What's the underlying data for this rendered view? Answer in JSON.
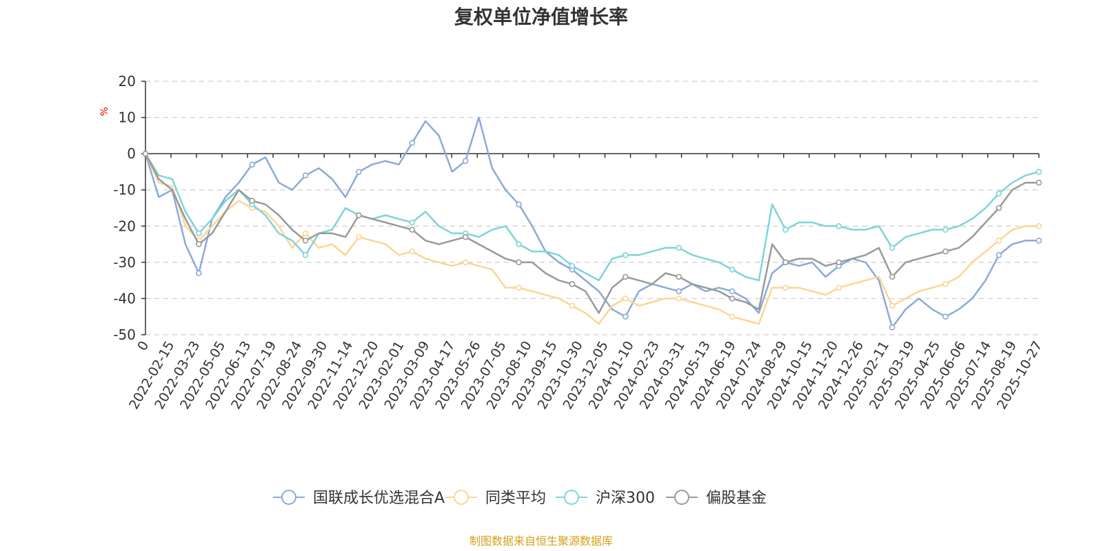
{
  "chart_data": {
    "type": "line",
    "title": "复权单位净值增长率",
    "ylabel": "%",
    "ylim": [
      -50,
      20
    ],
    "yticks": [
      20,
      10,
      0,
      -10,
      -20,
      -30,
      -40,
      -50
    ],
    "grid": true,
    "legend_position": "bottom",
    "x_tick_labels": [
      "0",
      "2022-02-15",
      "2022-03-23",
      "2022-05-05",
      "2022-06-13",
      "2022-07-19",
      "2022-08-24",
      "2022-09-30",
      "2022-11-14",
      "2022-12-20",
      "2023-02-01",
      "2023-03-09",
      "2023-04-17",
      "2023-05-26",
      "2023-07-05",
      "2023-08-10",
      "2023-09-15",
      "2023-10-30",
      "2023-12-05",
      "2024-01-10",
      "2024-02-23",
      "2024-03-31",
      "2024-05-13",
      "2024-06-19",
      "2024-07-24",
      "2024-08-29",
      "2024-10-15",
      "2024-11-20",
      "2024-12-26",
      "2025-02-11",
      "2025-03-19",
      "2025-04-25",
      "2025-06-06",
      "2025-07-14",
      "2025-08-19",
      "2025-10-27"
    ],
    "series": [
      {
        "name": "国联成长优选混合A",
        "color": "#8aaad8",
        "values": [
          0,
          -12,
          -10,
          -25,
          -33,
          -18,
          -12,
          -8,
          -3,
          -1,
          -8,
          -10,
          -6,
          -4,
          -7,
          -12,
          -5,
          -3,
          -2,
          -3,
          3,
          9,
          5,
          -5,
          -2,
          10,
          -4,
          -10,
          -14,
          -20,
          -27,
          -30,
          -32,
          -35,
          -38,
          -43,
          -45,
          -38,
          -36,
          -37,
          -38,
          -36,
          -38,
          -37,
          -38,
          -40,
          -44,
          -33,
          -30,
          -31,
          -30,
          -34,
          -31,
          -29,
          -30,
          -35,
          -48,
          -43,
          -40,
          -43,
          -45,
          -43,
          -40,
          -35,
          -28,
          -25,
          -24,
          -24
        ]
      },
      {
        "name": "同类平均",
        "color": "#fcd592",
        "values": [
          0,
          -8,
          -9,
          -20,
          -24,
          -20,
          -16,
          -13,
          -15,
          -16,
          -20,
          -26,
          -22,
          -26,
          -25,
          -28,
          -23,
          -24,
          -25,
          -28,
          -27,
          -29,
          -30,
          -31,
          -30,
          -31,
          -32,
          -37,
          -37,
          -38,
          -39,
          -40,
          -42,
          -44,
          -47,
          -42,
          -40,
          -42,
          -41,
          -40,
          -40,
          -41,
          -42,
          -43,
          -45,
          -46,
          -47,
          -37,
          -37,
          -37,
          -38,
          -39,
          -37,
          -36,
          -35,
          -34,
          -42,
          -40,
          -38,
          -37,
          -36,
          -34,
          -30,
          -27,
          -24,
          -21,
          -20,
          -20
        ]
      },
      {
        "name": "沪深300",
        "color": "#7dd4d9",
        "values": [
          0,
          -6,
          -7,
          -16,
          -22,
          -18,
          -13,
          -10,
          -14,
          -17,
          -22,
          -24,
          -28,
          -22,
          -21,
          -15,
          -17,
          -18,
          -17,
          -18,
          -19,
          -16,
          -20,
          -22,
          -22,
          -23,
          -21,
          -20,
          -25,
          -27,
          -27,
          -28,
          -31,
          -33,
          -35,
          -29,
          -28,
          -28,
          -27,
          -26,
          -26,
          -28,
          -29,
          -30,
          -32,
          -34,
          -35,
          -14,
          -21,
          -19,
          -19,
          -20,
          -20,
          -21,
          -21,
          -20,
          -26,
          -23,
          -22,
          -21,
          -21,
          -20,
          -18,
          -15,
          -11,
          -8,
          -6,
          -5
        ]
      },
      {
        "name": "偏股基金",
        "color": "#999999",
        "values": [
          0,
          -7,
          -10,
          -18,
          -25,
          -22,
          -16,
          -10,
          -13,
          -14,
          -17,
          -21,
          -24,
          -22,
          -22,
          -23,
          -17,
          -18,
          -19,
          -20,
          -21,
          -24,
          -25,
          -24,
          -23,
          -25,
          -27,
          -29,
          -30,
          -30,
          -33,
          -35,
          -36,
          -38,
          -44,
          -37,
          -34,
          -35,
          -36,
          -33,
          -34,
          -36,
          -37,
          -38,
          -40,
          -41,
          -43,
          -25,
          -30,
          -29,
          -29,
          -31,
          -30,
          -29,
          -28,
          -26,
          -34,
          -30,
          -29,
          -28,
          -27,
          -26,
          -23,
          -19,
          -15,
          -10,
          -8,
          -8
        ]
      }
    ]
  },
  "source_note": "制图数据来自恒生聚源数据库",
  "colors": {
    "axis": "#333333",
    "grid": "#cccccc",
    "unit": "#e00000",
    "source": "#d4a017"
  }
}
